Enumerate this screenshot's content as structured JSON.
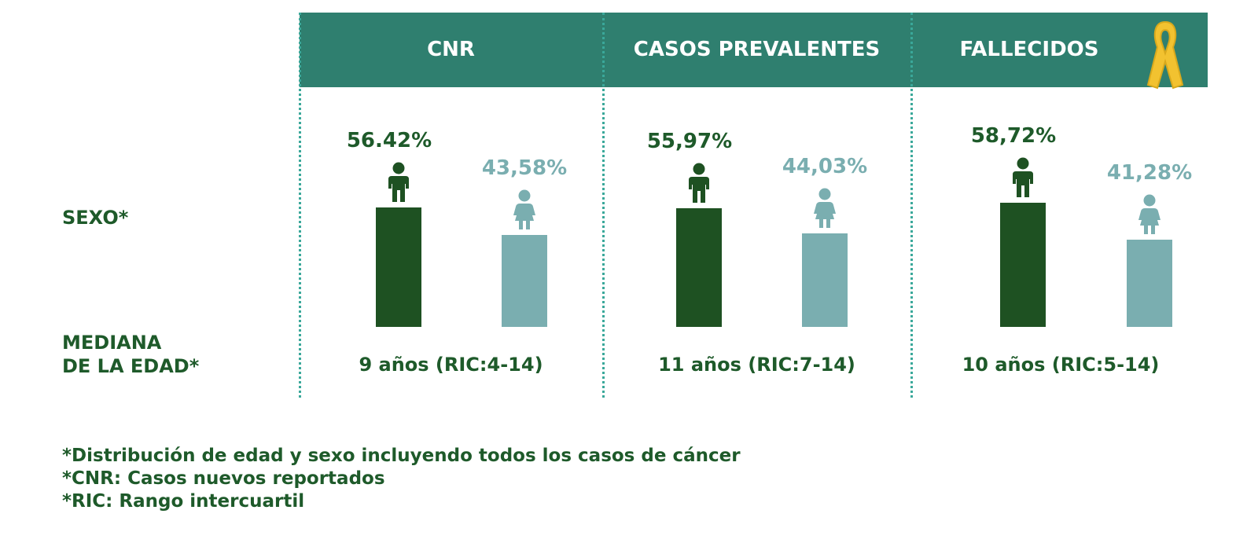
{
  "row_labels": {
    "sexo": "SEXO*",
    "mediana": "MEDIANA\nDE LA EDAD*"
  },
  "colors": {
    "header_bg": "#2f7f6f",
    "male": "#1e5122",
    "female": "#7aaeb0",
    "male_text": "#1e5a2a",
    "female_text": "#7aaeb0",
    "ribbon": "#f2c230"
  },
  "icons": {
    "male": "boy-figure-icon",
    "female": "girl-figure-icon",
    "ribbon": "awareness-ribbon-icon"
  },
  "chart_data": {
    "type": "bar",
    "categories": [
      "CNR",
      "CASOS PREVALENTES",
      "FALLECIDOS"
    ],
    "series": [
      {
        "values": [
          56.42,
          55.97,
          58.72
        ],
        "labels": [
          "56.42%",
          "55,97%",
          "58,72%"
        ]
      },
      {
        "values": [
          43.58,
          44.03,
          41.28
        ],
        "labels": [
          "43,58%",
          "44,03%",
          "41,28%"
        ]
      }
    ],
    "ylim": [
      0,
      60
    ],
    "median_age": [
      "9 años (RIC:4-14)",
      "11 años (RIC:7-14)",
      "10 años (RIC:5-14)"
    ]
  },
  "footnotes": [
    "*Distribución de edad y sexo incluyendo todos los casos de cáncer",
    "*CNR: Casos nuevos reportados",
    "*RIC: Rango intercuartil"
  ]
}
